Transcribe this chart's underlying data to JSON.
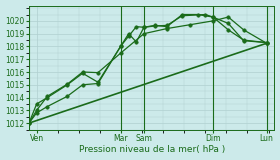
{
  "bg_color": "#cceaea",
  "grid_color": "#b0d0d0",
  "line_color": "#1a6b1a",
  "xlabel": "Pression niveau de la mer( hPa )",
  "ylim": [
    1011.5,
    1021.2
  ],
  "yticks": [
    1012,
    1013,
    1014,
    1015,
    1016,
    1017,
    1018,
    1019,
    1020
  ],
  "xlim": [
    0,
    16
  ],
  "day_lines": [
    0,
    6,
    7.5,
    12,
    15.5
  ],
  "xtick_positions": [
    0.5,
    6.0,
    7.5,
    12.0,
    15.5
  ],
  "xtick_labels": [
    "Ven",
    "Mar",
    "Sam",
    "Dim",
    "Lun"
  ],
  "series": [
    {
      "x": [
        0,
        0.5,
        1.2,
        2.5,
        3.5,
        4.5,
        6.0,
        6.5,
        7.0,
        7.5,
        8.2,
        9.0,
        10.0,
        11.0,
        12.0,
        13.0,
        14.0,
        15.5
      ],
      "y": [
        1012.0,
        1012.8,
        1013.3,
        1014.1,
        1015.0,
        1015.1,
        1018.05,
        1018.8,
        1019.55,
        1019.5,
        1019.65,
        1019.55,
        1020.5,
        1020.5,
        1020.3,
        1019.3,
        1018.5,
        1018.3
      ],
      "style": "-o",
      "linewidth": 0.9,
      "markersize": 2.5
    },
    {
      "x": [
        0,
        0.5,
        1.2,
        2.5,
        3.5,
        4.5,
        6.0,
        6.5,
        7.0,
        7.5,
        8.2,
        9.0,
        10.0,
        11.5,
        12.0,
        13.0,
        14.0,
        15.5
      ],
      "y": [
        1012.0,
        1013.5,
        1014.0,
        1015.0,
        1015.9,
        1015.2,
        1018.05,
        1019.0,
        1018.35,
        1019.5,
        1019.6,
        1019.65,
        1020.4,
        1020.5,
        1020.3,
        1019.8,
        1018.45,
        1018.3
      ],
      "style": "-o",
      "linewidth": 0.9,
      "markersize": 2.5
    },
    {
      "x": [
        0,
        0.5,
        1.2,
        2.5,
        3.5,
        4.5,
        6.0,
        7.5,
        9.0,
        10.5,
        12.0,
        13.0,
        14.0,
        15.5
      ],
      "y": [
        1012.0,
        1013.0,
        1014.1,
        1015.05,
        1016.0,
        1015.95,
        1017.5,
        1019.0,
        1019.4,
        1019.7,
        1020.0,
        1020.3,
        1019.3,
        1018.25
      ],
      "style": "-o",
      "linewidth": 0.9,
      "markersize": 2.5
    },
    {
      "x": [
        0,
        15.5
      ],
      "y": [
        1012.0,
        1018.25
      ],
      "style": "-",
      "linewidth": 1.2,
      "markersize": 0
    }
  ]
}
